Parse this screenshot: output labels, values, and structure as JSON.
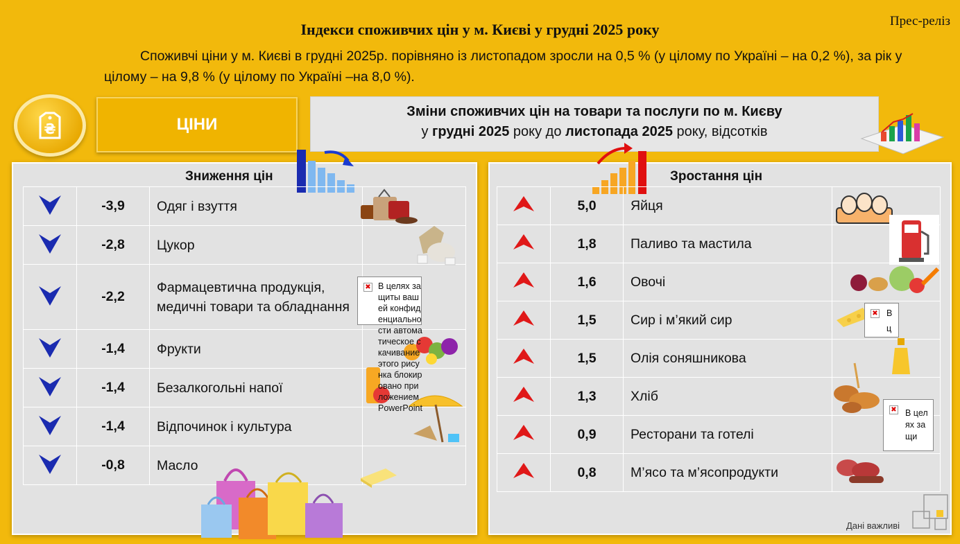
{
  "header": {
    "title": "Індекси споживчих цін у м. Києві у грудні 2025 року",
    "press_release": "Прес-реліз",
    "lead": "Споживчі ціни у м. Києві в грудні 2025р. порівняно із листопадом зросли на 0,5 % (у цілому по Україні – на 0,2 %), за рік у цілому – на 9,8 % (у цілому по Україні –на 8,0 %)."
  },
  "prices_label": "ЦІНИ",
  "changes_title": {
    "line1": "Зміни споживчих цін на товари та послуги по м. Києву",
    "line2_pre": "у ",
    "line2_b1": "грудні 2025",
    "line2_mid": " року до ",
    "line2_b2": "листопада 2025",
    "line2_post": " року, відсотків"
  },
  "decrease": {
    "title": "Зниження цін",
    "rows": [
      {
        "value": "-3,9",
        "name": "Одяг і взуття",
        "icon": "clothes-icon"
      },
      {
        "value": "-2,8",
        "name": "Цукор",
        "icon": "sugar-icon"
      },
      {
        "value": "-2,2",
        "name": "Фармацевтична продукція, медичні товари та обладнання",
        "icon": "pharma-placeholder"
      },
      {
        "value": "-1,4",
        "name": "Фрукти",
        "icon": "fruits-icon"
      },
      {
        "value": "-1,4",
        "name": "Безалкогольні напої",
        "icon": "drinks-icon"
      },
      {
        "value": "-1,4",
        "name": "Відпочинок і культура",
        "icon": "beach-umbrella-icon"
      },
      {
        "value": "-0,8",
        "name": "Масло",
        "icon": "butter-icon"
      }
    ]
  },
  "increase": {
    "title": "Зростання цін",
    "rows": [
      {
        "value": "5,0",
        "name": "Яйця",
        "icon": "eggs-icon"
      },
      {
        "value": "1,8",
        "name": "Паливо та мастила",
        "icon": "fuel-pump-icon"
      },
      {
        "value": "1,6",
        "name": "Овочі",
        "icon": "vegetables-icon"
      },
      {
        "value": "1,5",
        "name": "Сир і м’який сир",
        "icon": "cheese-icon"
      },
      {
        "value": "1,5",
        "name": "Олія соняшникова",
        "icon": "oil-bottle-icon"
      },
      {
        "value": "1,3",
        "name": "Хліб",
        "icon": "bread-icon"
      },
      {
        "value": "0,9",
        "name": "Ресторани та готелі",
        "icon": "restaurant-placeholder"
      },
      {
        "value": "0,8",
        "name": "М’ясо та м’ясопродукти",
        "icon": "meat-icon"
      }
    ]
  },
  "placeholder_text_long": "В целях защиты вашей конфиденциальности автоматическое скачивание этого рисунка блокировано приложением PowerPoint",
  "placeholder_text_short1": "В ц",
  "placeholder_text_short2": "В целях защи",
  "footer": "Дані важливі",
  "colors": {
    "background": "#F2B90C",
    "down": "#1A2B8E",
    "up": "#D01010",
    "panel": "#E2E2E2"
  }
}
